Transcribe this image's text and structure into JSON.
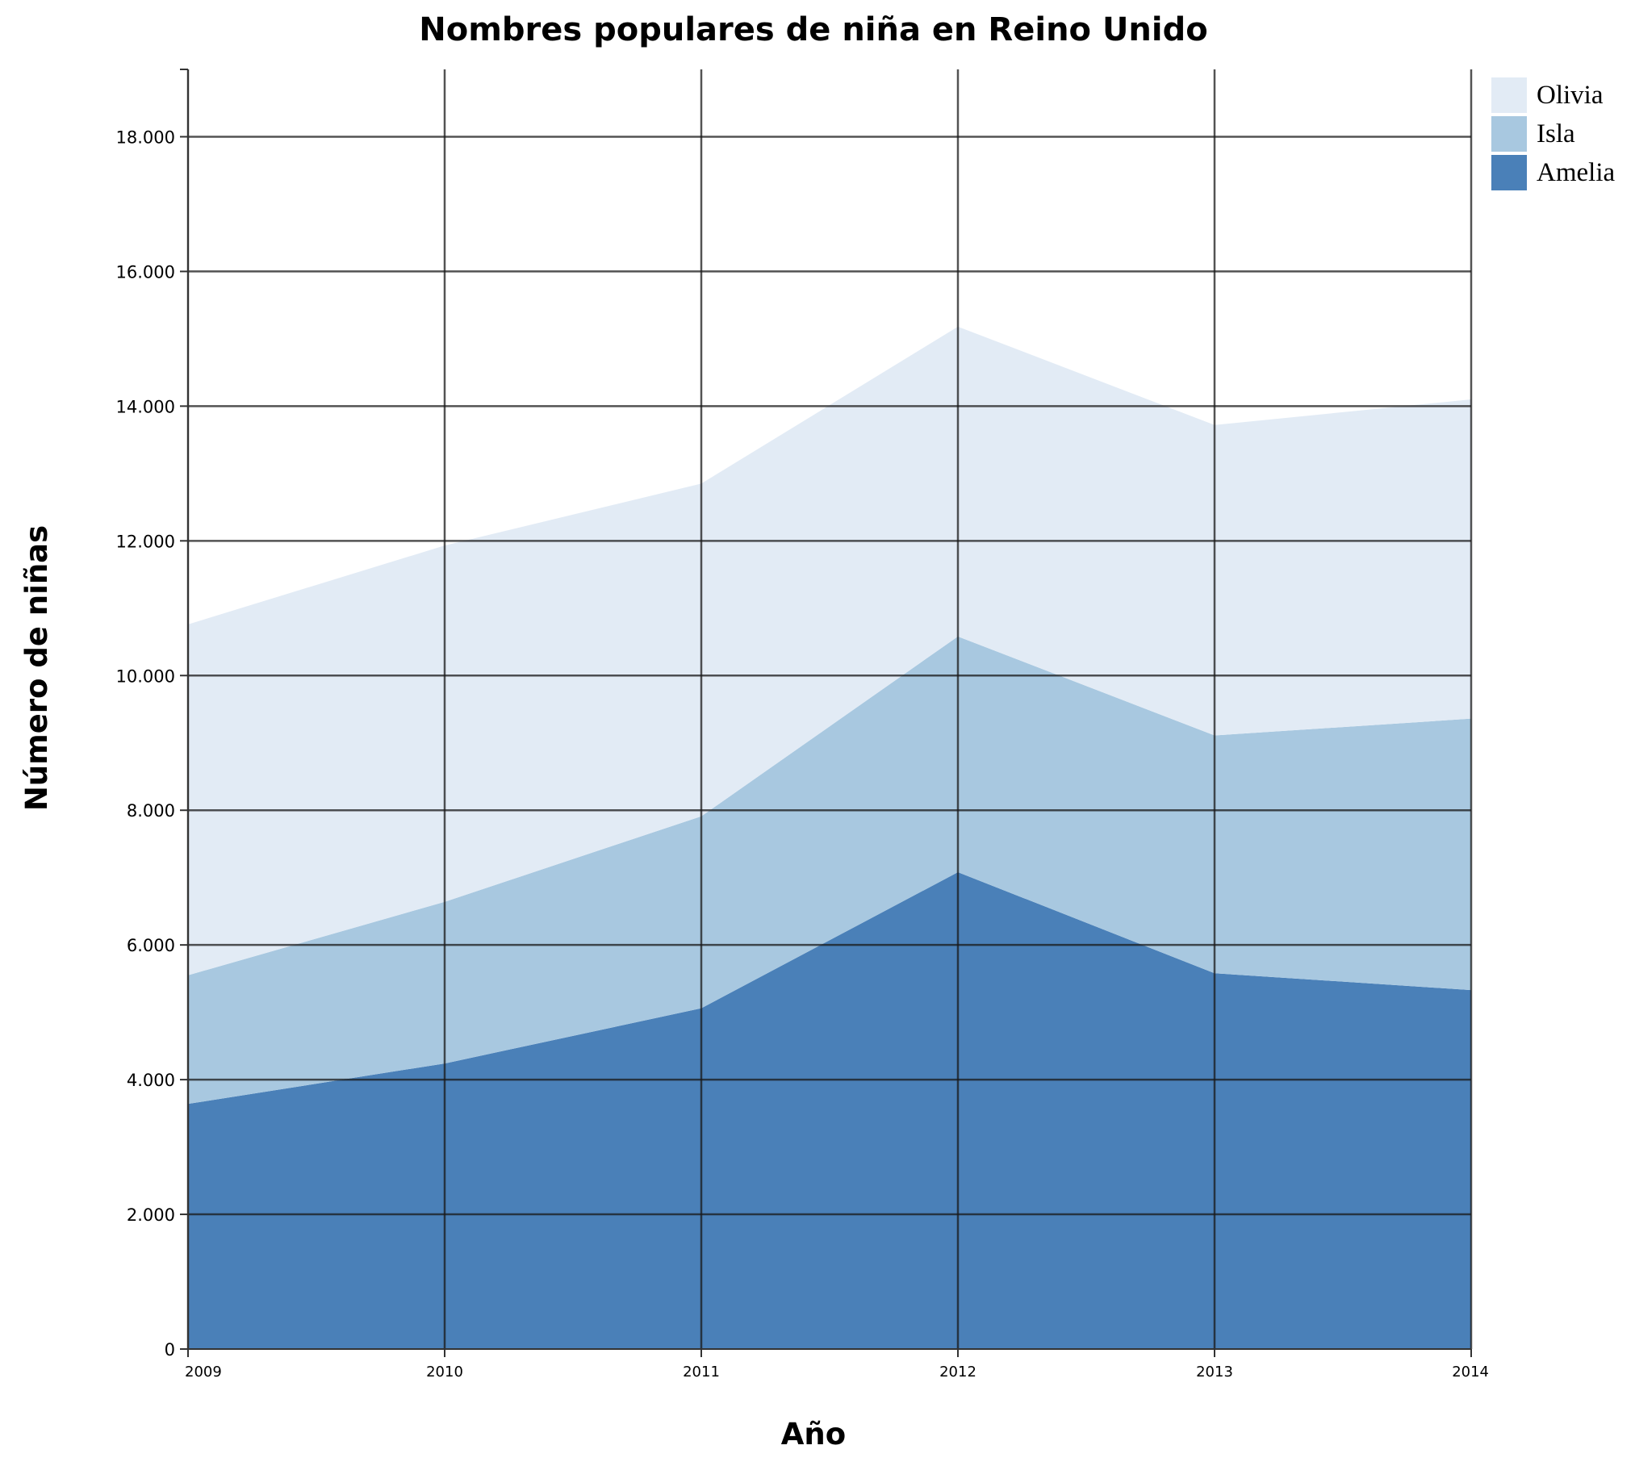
{
  "chart_data": {
    "type": "area",
    "stacked": true,
    "title": "Nombres populares de niña en Reino Unido",
    "xlabel": "Año",
    "ylabel": "Número de niñas",
    "x": [
      "2009",
      "2010",
      "2011",
      "2012",
      "2013",
      "2014"
    ],
    "ylim": [
      0,
      19000
    ],
    "yticks": [
      0,
      2000,
      4000,
      6000,
      8000,
      10000,
      12000,
      14000,
      16000,
      18000
    ],
    "ytick_labels": [
      "0",
      "2.000",
      "4.000",
      "6.000",
      "8.000",
      "10.000",
      "12.000",
      "14.000",
      "16.000",
      "18.000"
    ],
    "grid": true,
    "legend_position": "top-right",
    "series": [
      {
        "name": "Amelia",
        "color": "#4a80b8",
        "values": [
          3640,
          4240,
          5060,
          7080,
          5580,
          5330
        ]
      },
      {
        "name": "Isla",
        "color": "#a8c8e0",
        "values": [
          1910,
          2400,
          2850,
          3500,
          3530,
          4030
        ]
      },
      {
        "name": "Olivia",
        "color": "#e2ebf5",
        "values": [
          5210,
          5290,
          4940,
          4600,
          4610,
          4740
        ]
      }
    ],
    "legend_order": [
      "Olivia",
      "Isla",
      "Amelia"
    ]
  }
}
